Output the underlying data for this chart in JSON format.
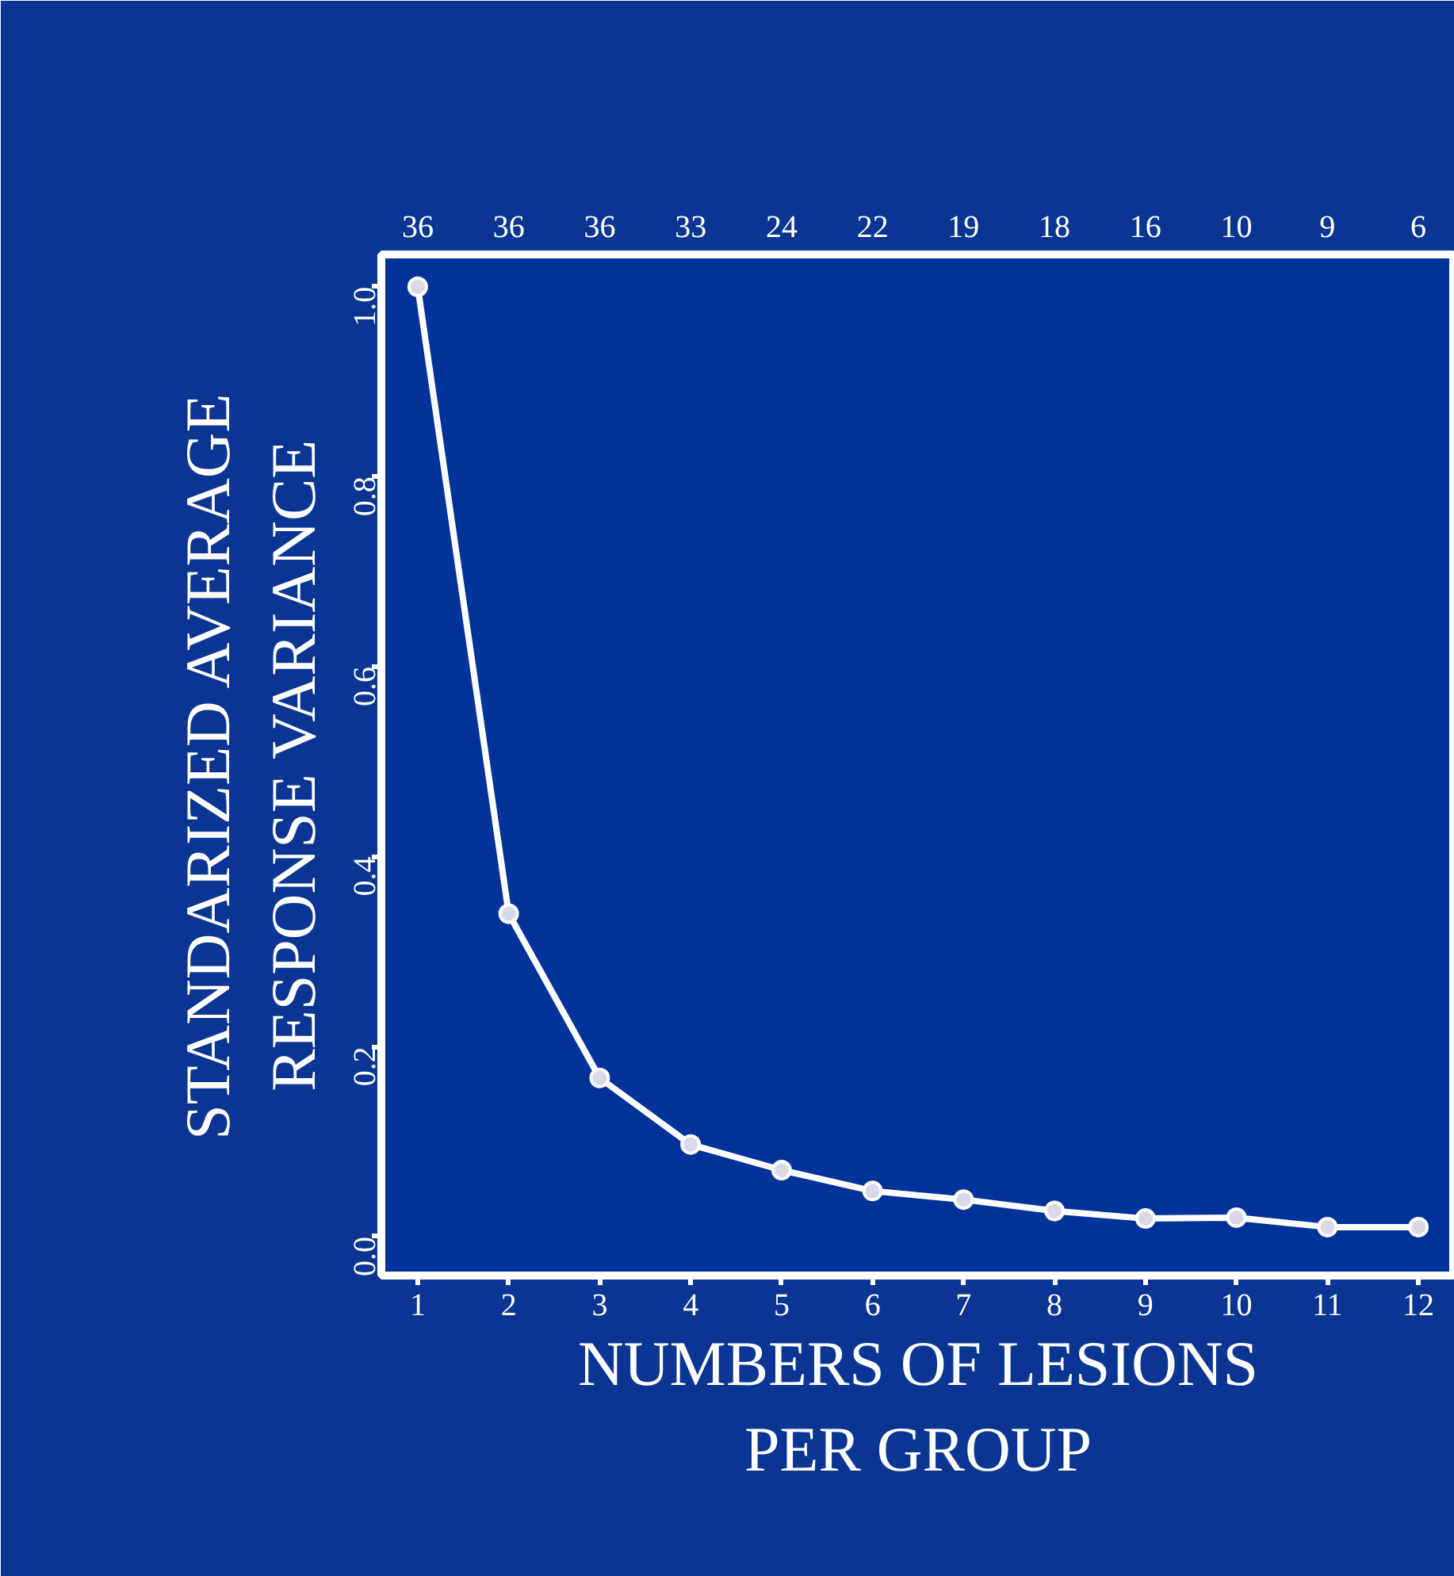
{
  "chart_data": {
    "type": "line",
    "xlabel": "NUMBERS OF LESIONS\nPER GROUP",
    "ylabel": "STANDARIZED AVERAGE\nRESPONSE VARIANCE",
    "x": [
      1,
      2,
      3,
      4,
      5,
      6,
      7,
      8,
      9,
      10,
      11,
      12
    ],
    "series": [
      {
        "color": "#ffffff",
        "values": [
          1.0,
          0.34,
          0.167,
          0.097,
          0.07,
          0.048,
          0.039,
          0.027,
          0.019,
          0.02,
          0.01,
          0.01
        ]
      }
    ],
    "xlim": [
      0.6,
      12.4
    ],
    "xticks": [
      1,
      2,
      3,
      4,
      5,
      6,
      7,
      8,
      9,
      10,
      11,
      12
    ],
    "annotations": [
      "36",
      "36",
      "36",
      "33",
      "24",
      "22",
      "19",
      "18",
      "16",
      "10",
      "9",
      "6"
    ],
    "ylim": [
      -0.041,
      1.034
    ],
    "yticks": [
      {
        "value": 0,
        "label": "0.0"
      },
      {
        "value": 0.2,
        "label": "0.2"
      },
      {
        "value": 0.4,
        "label": "0.4"
      },
      {
        "value": 0.6,
        "label": "0.6"
      },
      {
        "value": 0.8,
        "label": "0.8"
      },
      {
        "value": 1,
        "label": "1.0"
      }
    ],
    "marker": "circle",
    "line_style": "solid"
  }
}
